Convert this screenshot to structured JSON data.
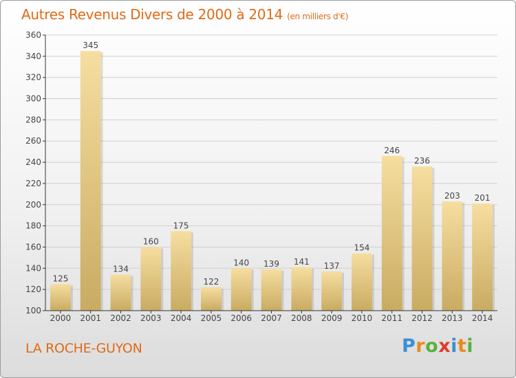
{
  "header": {
    "title": "Autres Revenus Divers de 2000 à 2014",
    "subtitle": "(en milliers d'€)"
  },
  "footer": {
    "commune": "LA ROCHE-GUYON",
    "logo_letters": [
      {
        "char": "P",
        "color": "#3a8fd6"
      },
      {
        "char": "r",
        "color": "#e98a1e"
      },
      {
        "char": "o",
        "color": "#56b33b"
      },
      {
        "char": "x",
        "color": "#e03a2a"
      },
      {
        "char": "i",
        "color": "#3a8fd6"
      },
      {
        "char": "t",
        "color": "#e98a1e"
      },
      {
        "char": "i",
        "color": "#56b33b"
      }
    ]
  },
  "chart_data": {
    "type": "bar",
    "categories": [
      "2000",
      "2001",
      "2002",
      "2003",
      "2004",
      "2005",
      "2006",
      "2007",
      "2008",
      "2009",
      "2010",
      "2011",
      "2012",
      "2013",
      "2014"
    ],
    "values": [
      125,
      345,
      134,
      160,
      175,
      122,
      140,
      139,
      141,
      137,
      154,
      246,
      236,
      203,
      201
    ],
    "data_labels": [
      "125",
      "345",
      "134",
      "160",
      "175",
      "122",
      "140",
      "139",
      "141",
      "137",
      "154",
      "246",
      "236",
      "203",
      "201"
    ],
    "ylim": [
      100,
      360
    ],
    "yticks": [
      100,
      120,
      140,
      160,
      180,
      200,
      220,
      240,
      260,
      280,
      300,
      320,
      340,
      360
    ],
    "grid": true,
    "colors": {
      "bar_light": "#f6dea0",
      "bar_dark": "#c9ab62",
      "grid": "#cfcfcf",
      "axis": "#333333",
      "text": "#444444"
    }
  }
}
